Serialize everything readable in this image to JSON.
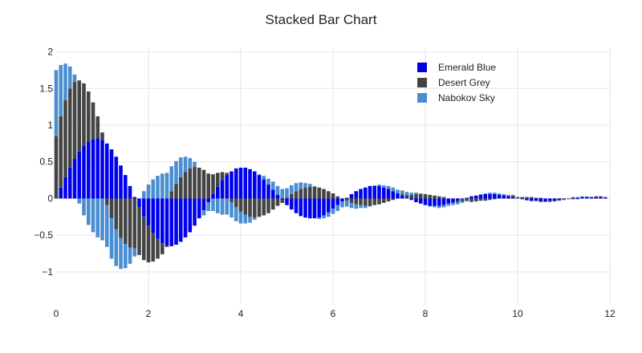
{
  "chart_data": {
    "type": "bar",
    "stacked": true,
    "title": "Stacked Bar Chart",
    "xlabel": "",
    "ylabel": "",
    "xlim": [
      0,
      12
    ],
    "ylim": [
      -1.45,
      2.05
    ],
    "x_ticks": [
      0,
      2,
      4,
      6,
      8,
      10,
      12
    ],
    "x_tick_labels": [
      "0",
      "2",
      "4",
      "6",
      "8",
      "10",
      "12"
    ],
    "y_ticks": [
      -1,
      -0.5,
      0,
      0.5,
      1,
      1.5,
      2
    ],
    "y_tick_labels": [
      "−1",
      "−0.5",
      "0",
      "0.5",
      "1",
      "1.5",
      "2"
    ],
    "grid": true,
    "legend_position": "top-right",
    "bar_width": 0.08,
    "x": [
      0.0,
      0.1,
      0.2,
      0.3,
      0.4,
      0.5,
      0.6,
      0.7,
      0.8,
      0.9,
      1.0,
      1.1,
      1.2,
      1.3,
      1.4,
      1.5,
      1.6,
      1.7,
      1.8,
      1.9,
      2.0,
      2.1,
      2.2,
      2.3,
      2.4,
      2.5,
      2.6,
      2.7,
      2.8,
      2.9,
      3.0,
      3.1,
      3.2,
      3.3,
      3.4,
      3.5,
      3.6,
      3.7,
      3.8,
      3.9,
      4.0,
      4.1,
      4.2,
      4.3,
      4.4,
      4.5,
      4.6,
      4.7,
      4.8,
      4.9,
      5.0,
      5.1,
      5.2,
      5.3,
      5.4,
      5.5,
      5.6,
      5.7,
      5.8,
      5.9,
      6.0,
      6.1,
      6.2,
      6.3,
      6.4,
      6.5,
      6.6,
      6.7,
      6.8,
      6.9,
      7.0,
      7.1,
      7.2,
      7.3,
      7.4,
      7.5,
      7.6,
      7.7,
      7.8,
      7.9,
      8.0,
      8.1,
      8.2,
      8.3,
      8.4,
      8.5,
      8.6,
      8.7,
      8.8,
      8.9,
      9.0,
      9.1,
      9.2,
      9.3,
      9.4,
      9.5,
      9.6,
      9.7,
      9.8,
      9.9,
      10.0,
      10.1,
      10.2,
      10.3,
      10.4,
      10.5,
      10.6,
      10.7,
      10.8,
      10.9,
      11.0,
      11.1,
      11.2,
      11.3,
      11.4,
      11.5,
      11.6,
      11.7,
      11.8,
      11.9
    ],
    "series": [
      {
        "name": "Emerald Blue",
        "color": "#0000ee",
        "values": [
          0.0,
          0.15,
          0.29,
          0.42,
          0.54,
          0.64,
          0.72,
          0.78,
          0.81,
          0.82,
          0.8,
          0.75,
          0.67,
          0.57,
          0.45,
          0.32,
          0.17,
          0.02,
          -0.12,
          -0.25,
          -0.37,
          -0.47,
          -0.55,
          -0.61,
          -0.64,
          -0.65,
          -0.63,
          -0.59,
          -0.53,
          -0.46,
          -0.37,
          -0.27,
          -0.16,
          -0.05,
          0.06,
          0.16,
          0.25,
          0.32,
          0.37,
          0.41,
          0.42,
          0.42,
          0.4,
          0.37,
          0.32,
          0.26,
          0.19,
          0.12,
          0.05,
          -0.02,
          -0.09,
          -0.15,
          -0.2,
          -0.24,
          -0.26,
          -0.27,
          -0.27,
          -0.26,
          -0.23,
          -0.19,
          -0.14,
          -0.09,
          -0.04,
          0.01,
          0.06,
          0.1,
          0.13,
          0.15,
          0.17,
          0.17,
          0.17,
          0.15,
          0.13,
          0.1,
          0.07,
          0.04,
          0.01,
          -0.02,
          -0.05,
          -0.07,
          -0.09,
          -0.1,
          -0.1,
          -0.1,
          -0.09,
          -0.07,
          -0.05,
          -0.03,
          -0.01,
          0.01,
          0.03,
          0.04,
          0.05,
          0.06,
          0.06,
          0.06,
          0.05,
          0.04,
          0.03,
          0.02,
          0.0,
          -0.01,
          -0.02,
          -0.03,
          -0.03,
          -0.04,
          -0.04,
          -0.03,
          -0.03,
          -0.02,
          -0.01,
          0.0,
          0.01,
          0.01,
          0.02,
          0.02,
          0.02,
          0.02,
          0.02,
          0.01
        ]
      },
      {
        "name": "Desert Grey",
        "color": "#444444",
        "values": [
          0.85,
          0.97,
          1.05,
          1.08,
          1.05,
          0.97,
          0.85,
          0.68,
          0.5,
          0.3,
          0.1,
          -0.09,
          -0.27,
          -0.42,
          -0.54,
          -0.62,
          -0.67,
          -0.68,
          -0.65,
          -0.59,
          -0.5,
          -0.39,
          -0.27,
          -0.15,
          -0.02,
          0.1,
          0.2,
          0.29,
          0.36,
          0.41,
          0.43,
          0.42,
          0.39,
          0.34,
          0.27,
          0.19,
          0.11,
          0.03,
          -0.05,
          -0.12,
          -0.18,
          -0.22,
          -0.25,
          -0.26,
          -0.25,
          -0.23,
          -0.2,
          -0.15,
          -0.1,
          -0.04,
          0.01,
          0.06,
          0.1,
          0.13,
          0.15,
          0.16,
          0.16,
          0.15,
          0.13,
          0.1,
          0.07,
          0.03,
          0.0,
          -0.03,
          -0.06,
          -0.08,
          -0.09,
          -0.1,
          -0.1,
          -0.09,
          -0.08,
          -0.06,
          -0.04,
          -0.02,
          0.0,
          0.02,
          0.04,
          0.05,
          0.06,
          0.06,
          0.06,
          0.05,
          0.04,
          0.03,
          0.02,
          0.0,
          -0.01,
          -0.02,
          -0.03,
          -0.03,
          -0.04,
          -0.04,
          -0.03,
          -0.03,
          -0.02,
          -0.01,
          0.0,
          0.01,
          0.01,
          0.02,
          0.02,
          0.02,
          0.02,
          0.02,
          0.01,
          0.01,
          0.0,
          -0.01,
          -0.01,
          -0.01,
          -0.01,
          -0.01,
          -0.01,
          -0.01,
          0.0,
          0.0,
          0.0,
          0.01,
          0.01,
          0.01
        ]
      },
      {
        "name": "Nabokov Sky",
        "color": "#4a8ed2",
        "values": [
          0.9,
          0.7,
          0.5,
          0.3,
          0.1,
          -0.07,
          -0.23,
          -0.36,
          -0.46,
          -0.53,
          -0.57,
          -0.57,
          -0.55,
          -0.5,
          -0.42,
          -0.33,
          -0.22,
          -0.11,
          0.0,
          0.1,
          0.19,
          0.26,
          0.31,
          0.34,
          0.35,
          0.34,
          0.31,
          0.27,
          0.21,
          0.14,
          0.07,
          0.0,
          -0.07,
          -0.12,
          -0.17,
          -0.2,
          -0.22,
          -0.22,
          -0.21,
          -0.19,
          -0.16,
          -0.12,
          -0.08,
          -0.03,
          0.01,
          0.05,
          0.08,
          0.11,
          0.12,
          0.13,
          0.13,
          0.12,
          0.11,
          0.09,
          0.06,
          0.04,
          0.01,
          -0.02,
          -0.04,
          -0.06,
          -0.07,
          -0.08,
          -0.08,
          -0.08,
          -0.07,
          -0.06,
          -0.04,
          -0.03,
          -0.01,
          0.01,
          0.02,
          0.03,
          0.04,
          0.05,
          0.05,
          0.05,
          0.04,
          0.03,
          0.02,
          0.01,
          0.0,
          -0.01,
          -0.02,
          -0.03,
          -0.03,
          -0.03,
          -0.03,
          -0.03,
          -0.02,
          -0.01,
          -0.01,
          0.0,
          0.01,
          0.01,
          0.02,
          0.02,
          0.02,
          0.01,
          0.01,
          0.01,
          0.0,
          0.0,
          -0.01,
          -0.01,
          -0.01,
          -0.01,
          -0.01,
          -0.01,
          0.0,
          0.0,
          0.0,
          0.0,
          0.01,
          0.01,
          0.01,
          0.01,
          0.0,
          0.0,
          0.0,
          0.0
        ]
      }
    ]
  }
}
